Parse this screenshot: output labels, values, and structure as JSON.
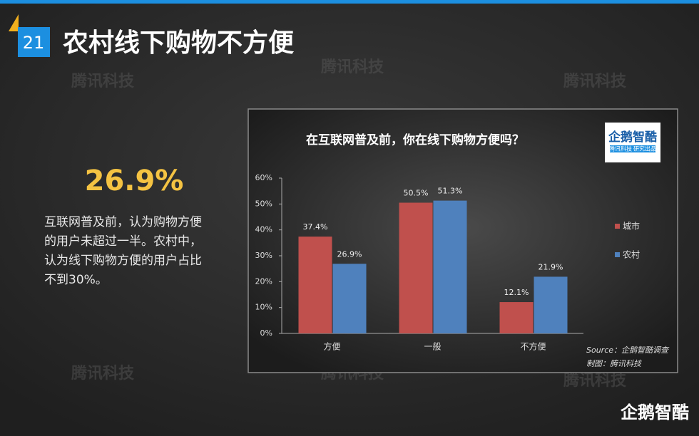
{
  "slide_number": "21",
  "title": "农村线下购物不方便",
  "watermark": "腾讯科技",
  "highlight": "26.9%",
  "description_lines": [
    "互联网普及前，认为购物方便",
    "的用户未超过一半。农村中，",
    "认为线下购物方便的用户占比",
    "不到30%。"
  ],
  "logo": {
    "name": "企鹅智酷",
    "tagline_left": "腾讯科技",
    "tagline_right": "研究出品"
  },
  "footer_logo": "企鹅智酷",
  "chart_data": {
    "type": "bar",
    "title": "在互联网普及前，你在线下购物方便吗？",
    "categories": [
      "方便",
      "一般",
      "不方便"
    ],
    "series": [
      {
        "name": "城市",
        "color": "#c0504d",
        "values": [
          37.4,
          50.5,
          12.1
        ],
        "value_labels": [
          "37.4%",
          "50.5%",
          "12.1%"
        ]
      },
      {
        "name": "农村",
        "color": "#4f81bd",
        "values": [
          26.9,
          51.3,
          21.9
        ],
        "value_labels": [
          "26.9%",
          "51.3%",
          "21.9%"
        ]
      }
    ],
    "ylim": [
      0,
      60
    ],
    "yticks": [
      {
        "value": 0,
        "label": "0%"
      },
      {
        "value": 10,
        "label": "10%"
      },
      {
        "value": 20,
        "label": "20%"
      },
      {
        "value": 30,
        "label": "30%"
      },
      {
        "value": 40,
        "label": "40%"
      },
      {
        "value": 50,
        "label": "50%"
      },
      {
        "value": 60,
        "label": "60%"
      }
    ],
    "legend": "right",
    "source": "Source：企鹅智酷调查",
    "credit": "制图：腾讯科技"
  }
}
